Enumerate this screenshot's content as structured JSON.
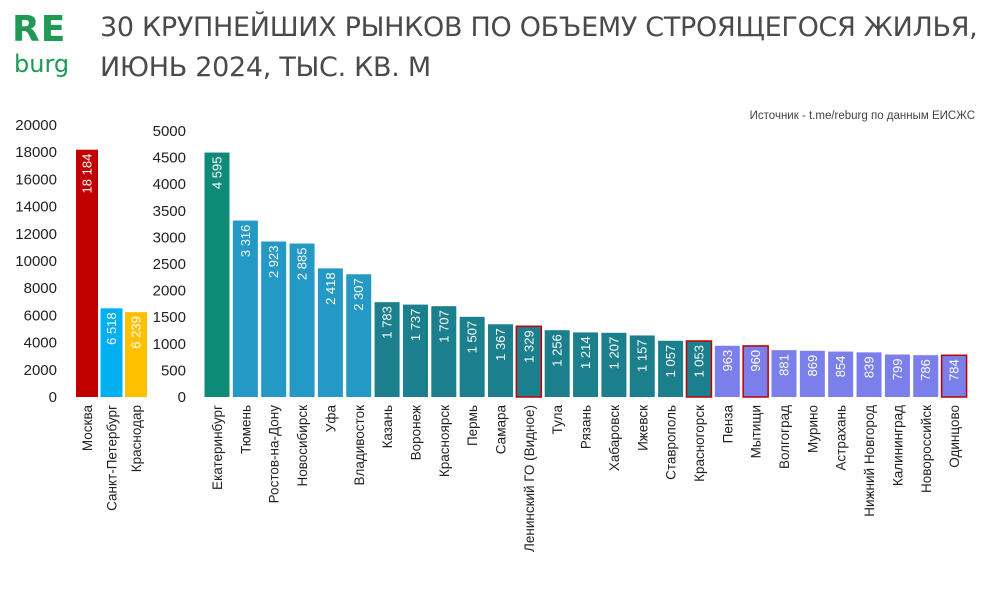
{
  "logo": {
    "top": "RE",
    "bottom": "burg"
  },
  "title": {
    "line1": "30 КРУПНЕЙШИХ РЫНКОВ ПО ОБЪЕМУ СТРОЯЩЕГОСЯ ЖИЛЬЯ,",
    "line2": "ИЮНЬ 2024, ТЫС. КВ. М"
  },
  "source": "Источник - t.me/reburg по данным ЕИСЖС",
  "colors": {
    "moscow": "#c00000",
    "spb": "#00b0f0",
    "krasnodar": "#ffc000",
    "ekaterinburg": "#0e8a78",
    "blue": "#2499c6",
    "teal": "#1b7f8e",
    "purple": "#7b7fec",
    "highlight_border": "#c00000"
  },
  "chart_data": [
    {
      "type": "bar",
      "ylim": [
        0,
        20000
      ],
      "yticks": [
        "0",
        "2000",
        "4000",
        "6000",
        "8000",
        "10000",
        "12000",
        "14000",
        "16000",
        "18000",
        "20000"
      ],
      "categories": [
        "Москва",
        "Санкт-Петербург",
        "Краснодар"
      ],
      "values": [
        18184,
        6518,
        6239
      ],
      "value_labels": [
        "18 184",
        "6 518",
        "6 239"
      ],
      "colors": [
        "moscow",
        "spb",
        "krasnodar"
      ]
    },
    {
      "type": "bar",
      "ylim": [
        0,
        5000
      ],
      "yticks": [
        "0",
        "500",
        "1000",
        "1500",
        "2000",
        "2500",
        "3000",
        "3500",
        "4000",
        "4500",
        "5000"
      ],
      "categories": [
        "Екатеринбург",
        "Тюмень",
        "Ростов-на-Дону",
        "Новосибирск",
        "Уфа",
        "Владивосток",
        "Казань",
        "Воронеж",
        "Красноярск",
        "Пермь",
        "Самара",
        "Ленинский ГО (Видное)",
        "Тула",
        "Рязань",
        "Хабаровск",
        "Ижевск",
        "Ставрополь",
        "Красногорск",
        "Пенза",
        "Мытищи",
        "Волгоград",
        "Мурино",
        "Астрахань",
        "Нижний Новгород",
        "Калининград",
        "Новороссийск",
        "Одинцово"
      ],
      "values": [
        4595,
        3316,
        2923,
        2885,
        2418,
        2307,
        1783,
        1737,
        1707,
        1507,
        1367,
        1329,
        1256,
        1214,
        1207,
        1157,
        1057,
        1053,
        963,
        960,
        881,
        869,
        854,
        839,
        799,
        786,
        784
      ],
      "value_labels": [
        "4 595",
        "3 316",
        "2 923",
        "2 885",
        "2 418",
        "2 307",
        "1 783",
        "1 737",
        "1 707",
        "1 507",
        "1 367",
        "1 329",
        "1 256",
        "1 214",
        "1 207",
        "1 157",
        "1 057",
        "1 053",
        "963",
        "960",
        "881",
        "869",
        "854",
        "839",
        "799",
        "786",
        "784"
      ],
      "colors": [
        "ekaterinburg",
        "blue",
        "blue",
        "blue",
        "blue",
        "blue",
        "teal",
        "teal",
        "teal",
        "teal",
        "teal",
        "teal",
        "teal",
        "teal",
        "teal",
        "teal",
        "teal",
        "teal",
        "purple",
        "purple",
        "purple",
        "purple",
        "purple",
        "purple",
        "purple",
        "purple",
        "purple"
      ],
      "highlighted": [
        "Ленинский ГО (Видное)",
        "Красногорск",
        "Мытищи",
        "Одинцово"
      ]
    }
  ]
}
